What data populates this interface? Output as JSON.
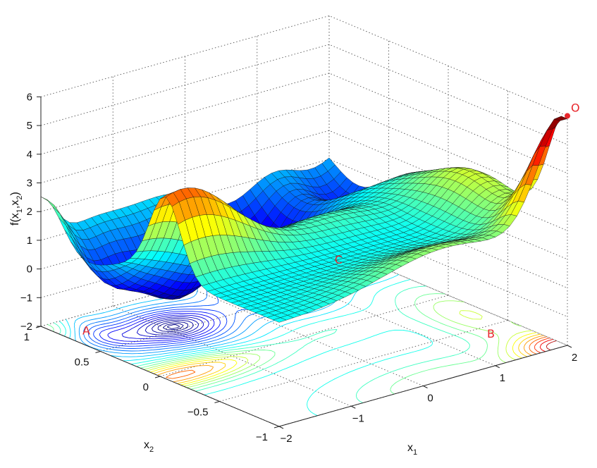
{
  "chart_data": {
    "type": "surface",
    "xlabel": "x",
    "xlabel_sub": "1",
    "ylabel": "x",
    "ylabel_sub": "2",
    "zlabel": "f(x1,x2)",
    "xlim": [
      -2,
      2
    ],
    "ylim": [
      -1,
      1
    ],
    "zlim": [
      -2,
      6
    ],
    "x_ticks": [
      -2,
      -1,
      0,
      1,
      2
    ],
    "x_tick_labels": [
      "−2",
      "−1",
      "0",
      "1",
      "2"
    ],
    "y_ticks": [
      -1,
      -0.5,
      0,
      0.5,
      1
    ],
    "y_tick_labels": [
      "−1",
      "−0.5",
      "0",
      "0.5",
      "1"
    ],
    "z_ticks": [
      -2,
      -1,
      0,
      1,
      2,
      3,
      4,
      5,
      6
    ],
    "z_tick_labels": [
      "−2",
      "−1",
      "0",
      "1",
      "2",
      "3",
      "4",
      "5",
      "6"
    ],
    "grid": true,
    "colormap": "jet",
    "contour_projection": true,
    "markers": [
      {
        "label": "O",
        "x": 2,
        "y": -1,
        "z": 6
      },
      {
        "label": "A",
        "x": -1.7,
        "y": 0.8,
        "z": -2
      },
      {
        "label": "B",
        "x": 1.6,
        "y": -0.6,
        "z": -2
      },
      {
        "label": "C",
        "x": 1.8,
        "y": 0.8,
        "z": -2
      }
    ],
    "marker_color": "#e8262b"
  }
}
